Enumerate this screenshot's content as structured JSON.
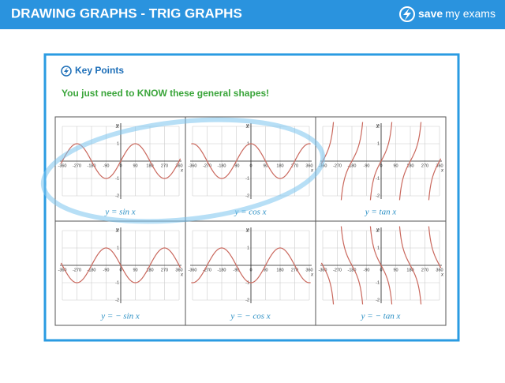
{
  "header": {
    "title": "DRAWING GRAPHS - TRIG GRAPHS",
    "logo_bold": "save",
    "logo_rest": "my exams"
  },
  "card": {
    "heading": "Key Points",
    "subheading": "You just need to KNOW these general shapes!"
  },
  "axes": {
    "xticks": [
      -360,
      -270,
      -180,
      -90,
      0,
      90,
      180,
      270,
      360
    ],
    "yticks": [
      2,
      1,
      -1,
      -2
    ],
    "x_label": "x",
    "y_label": "y"
  },
  "graphs": [
    {
      "caption": "y = sin x"
    },
    {
      "caption": "y = cos x"
    },
    {
      "caption": "y = tan x"
    },
    {
      "caption": "y = − sin x"
    },
    {
      "caption": "y = − cos x"
    },
    {
      "caption": "y = − tan x"
    }
  ]
}
